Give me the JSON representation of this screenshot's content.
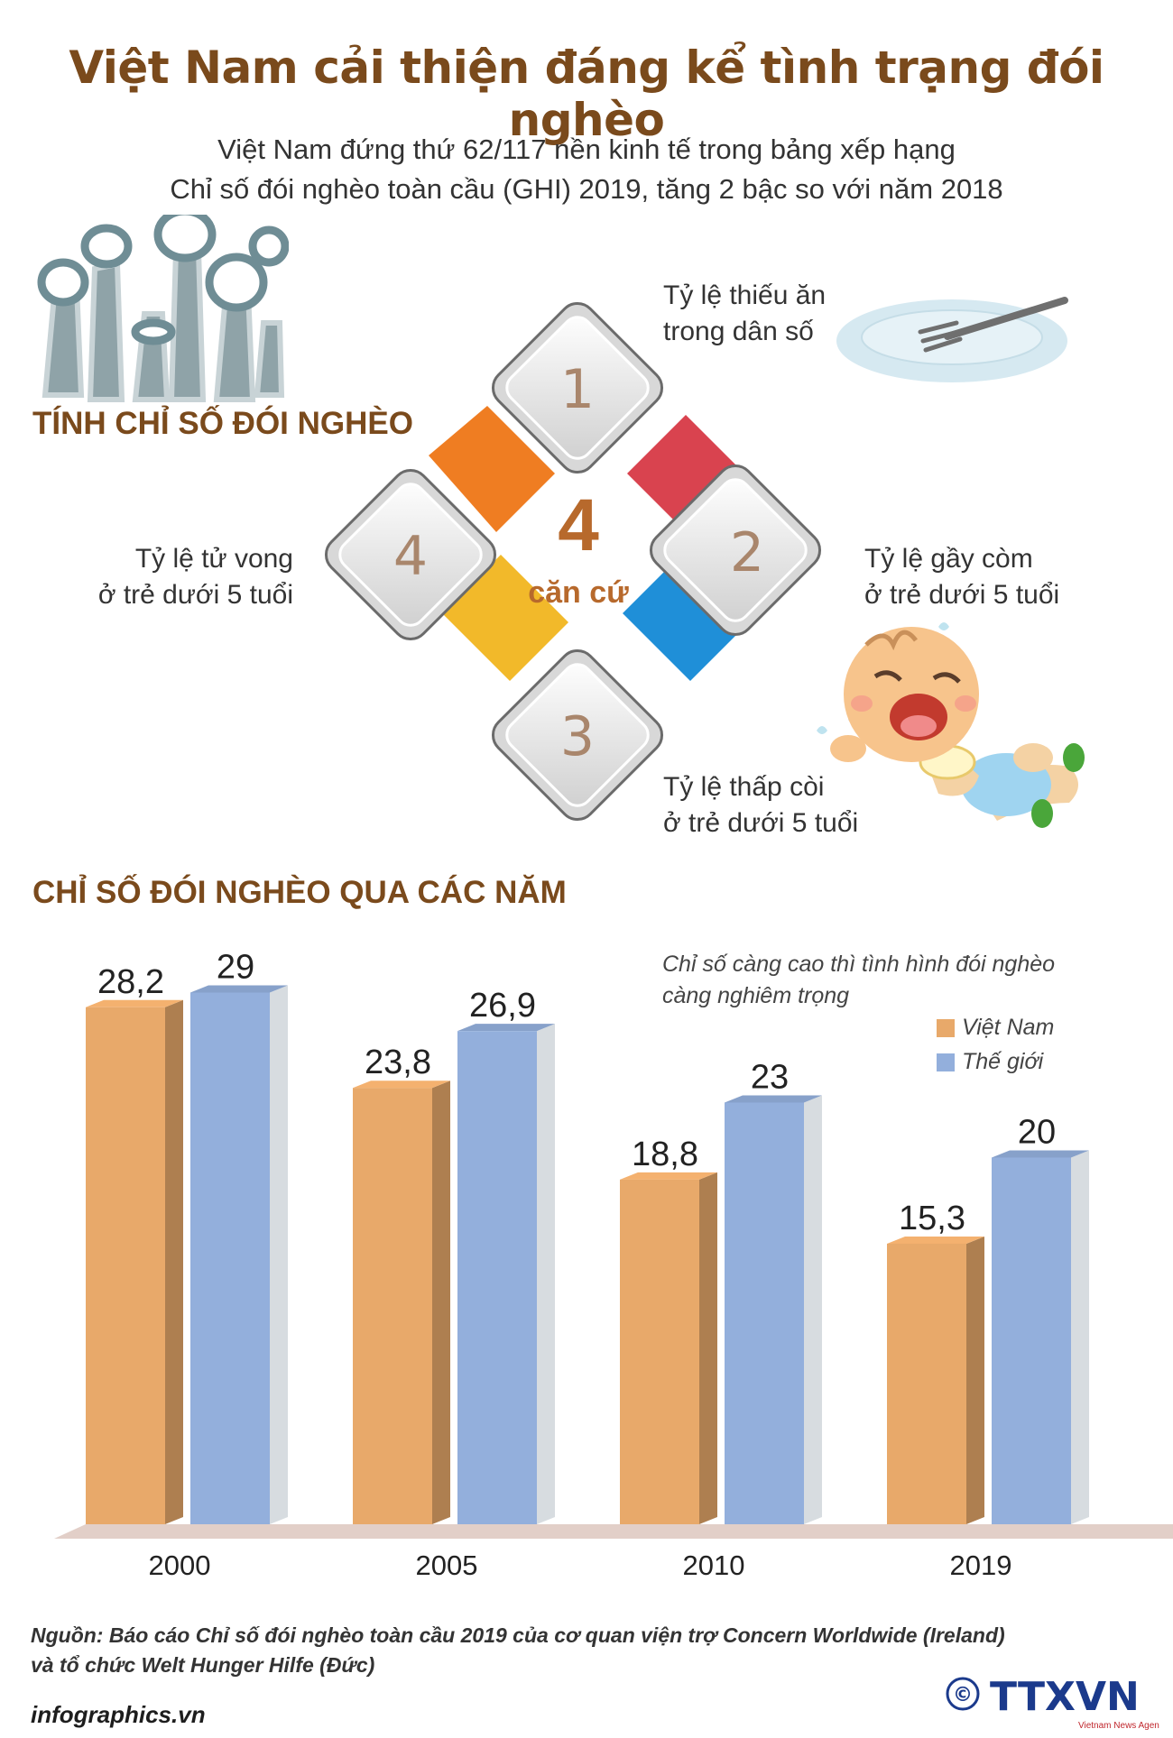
{
  "title": "Việt Nam cải thiện đáng kể tình trạng đói nghèo",
  "subtitle": {
    "line1": "Việt Nam đứng thứ 62/117 nền kinh tế trong bảng xếp hạng",
    "line2": "Chỉ số đói nghèo toàn cầu (GHI) 2019, tăng 2 bậc so với năm 2018"
  },
  "section1": {
    "heading": "TÍNH CHỈ SỐ ĐÓI NGHÈO",
    "center_number": "4",
    "center_text": "căn cứ",
    "criteria": [
      {
        "number": "1",
        "line1": "Tỷ lệ thiếu ăn",
        "line2": "trong dân số",
        "color": "#d9434f"
      },
      {
        "number": "2",
        "line1": "Tỷ lệ gầy còm",
        "line2": "ở trẻ dưới 5 tuổi",
        "color": "#1f8fd8"
      },
      {
        "number": "3",
        "line1": "Tỷ lệ thấp còi",
        "line2": "ở trẻ dưới 5 tuổi",
        "color": "#f2b92a"
      },
      {
        "number": "4",
        "line1": "Tỷ lệ tử vong",
        "line2": "ở trẻ dưới 5 tuổi",
        "color": "#ef7d22"
      }
    ],
    "icons": [
      "raised-bowls-icon",
      "empty-plate-icon",
      "crying-baby-icon"
    ]
  },
  "section2": {
    "heading": "CHỈ SỐ ĐÓI NGHÈO QUA CÁC NĂM",
    "note_line1": "Chỉ số càng cao thì tình hình đói nghèo",
    "note_line2": "càng nghiêm trọng"
  },
  "chart_data": {
    "type": "bar",
    "categories": [
      "2000",
      "2005",
      "2010",
      "2019"
    ],
    "series": [
      {
        "name": "Việt Nam",
        "values": [
          28.2,
          23.8,
          18.8,
          15.3
        ],
        "labels": [
          "28,2",
          "23,8",
          "18,8",
          "15,3"
        ],
        "color": "#e8a96a"
      },
      {
        "name": "Thế giới",
        "values": [
          29,
          26.9,
          23,
          20
        ],
        "labels": [
          "29",
          "26,9",
          "23",
          "20"
        ],
        "color": "#93afdc"
      }
    ],
    "ylim": [
      0,
      30
    ],
    "grid": false,
    "legend_position": "top-right"
  },
  "footer": {
    "source_line1": "Nguồn: Báo cáo Chỉ số đói nghèo toàn cầu 2019 của cơ quan viện trợ Concern Worldwide (Ireland)",
    "source_line2": "và tổ chức Welt Hunger Hilfe (Đức)",
    "website": "infographics.vn",
    "copyright": "©",
    "logo_text": "TTXVN",
    "logo_subtext": "Vietnam News Agency"
  }
}
